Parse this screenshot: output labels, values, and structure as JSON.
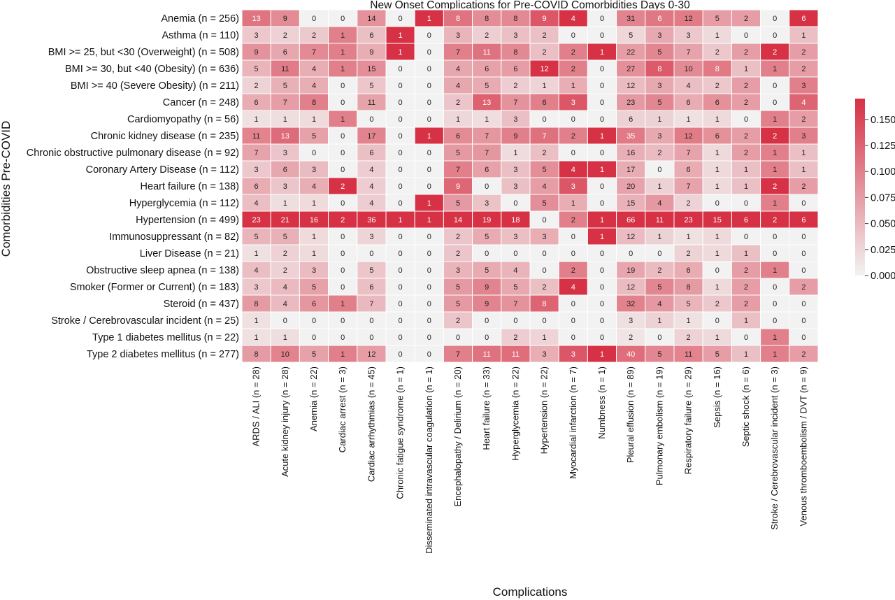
{
  "chart_data": {
    "type": "heatmap",
    "title": "New Onset Complications for Pre-COVID Comorbidities Days 0-30",
    "xlabel": "Complications",
    "ylabel": "Comorbidities Pre-COVID",
    "rows": [
      "Anemia (n = 256)",
      "Asthma (n = 110)",
      "BMI >= 25, but <30 (Overweight) (n = 508)",
      "BMI >= 30, but <40 (Obesity) (n = 636)",
      "BMI >= 40 (Severe Obesity) (n = 211)",
      "Cancer (n = 248)",
      "Cardiomyopathy (n = 56)",
      "Chronic kidney disease (n = 235)",
      "Chronic obstructive pulmonary disease (n = 92)",
      "Coronary Artery Disease (n = 112)",
      "Heart failure (n = 138)",
      "Hyperglycemia (n = 112)",
      "Hypertension (n = 499)",
      "Immunosuppressant (n = 82)",
      "Liver Disease (n = 21)",
      "Obstructive sleep apnea (n = 138)",
      "Smoker (Former or Current) (n = 183)",
      "Steroid (n = 437)",
      "Stroke / Cerebrovascular incident (n = 25)",
      "Type 1 diabetes mellitus (n = 22)",
      "Type 2 diabetes mellitus (n = 277)"
    ],
    "columns": [
      "ARDS / ALI (n = 28)",
      "Acute kidney injury (n = 28)",
      "Anemia (n = 22)",
      "Cardiac arrest (n = 3)",
      "Cardiac arrhythmias (n = 45)",
      "Chronic fatigue syndrome (n = 1)",
      "Disseminated intravascular coagulation (n = 1)",
      "Encephalopathy / Delirium (n = 20)",
      "Heart failure (n = 33)",
      "Hyperglycemia (n = 22)",
      "Hypertension (n = 22)",
      "Myocardial infarction (n = 7)",
      "Numbness (n = 1)",
      "Pleural effusion (n = 89)",
      "Pulmonary embolism (n = 19)",
      "Respiratory failure (n = 29)",
      "Sepsis (n = 16)",
      "Septic shock (n = 6)",
      "Stroke / Cerebrovascular incident (n = 3)",
      "Venous thromboembolism / DVT (n = 9)"
    ],
    "values": [
      [
        13,
        9,
        0,
        0,
        14,
        0,
        1,
        8,
        8,
        8,
        9,
        4,
        0,
        31,
        6,
        12,
        5,
        2,
        0,
        6
      ],
      [
        3,
        2,
        2,
        1,
        6,
        1,
        0,
        3,
        2,
        3,
        2,
        0,
        0,
        5,
        3,
        3,
        1,
        0,
        0,
        1
      ],
      [
        9,
        6,
        7,
        1,
        9,
        1,
        0,
        7,
        11,
        8,
        2,
        2,
        1,
        22,
        5,
        7,
        2,
        2,
        2,
        2
      ],
      [
        5,
        11,
        4,
        1,
        15,
        0,
        0,
        4,
        6,
        6,
        12,
        2,
        0,
        27,
        8,
        10,
        8,
        1,
        1,
        2
      ],
      [
        2,
        5,
        4,
        0,
        5,
        0,
        0,
        4,
        5,
        2,
        1,
        1,
        0,
        12,
        3,
        4,
        2,
        2,
        0,
        3
      ],
      [
        6,
        7,
        8,
        0,
        11,
        0,
        0,
        2,
        13,
        7,
        6,
        3,
        0,
        23,
        5,
        6,
        6,
        2,
        0,
        4
      ],
      [
        1,
        1,
        1,
        1,
        0,
        0,
        0,
        1,
        1,
        3,
        0,
        0,
        0,
        6,
        1,
        1,
        1,
        0,
        1,
        2
      ],
      [
        11,
        13,
        5,
        0,
        17,
        0,
        1,
        6,
        7,
        9,
        7,
        2,
        1,
        35,
        3,
        12,
        6,
        2,
        2,
        3
      ],
      [
        7,
        3,
        0,
        0,
        6,
        0,
        0,
        5,
        7,
        1,
        2,
        0,
        0,
        16,
        2,
        7,
        1,
        2,
        1,
        1
      ],
      [
        3,
        6,
        3,
        0,
        4,
        0,
        0,
        7,
        6,
        3,
        5,
        4,
        1,
        17,
        0,
        6,
        1,
        1,
        1,
        1
      ],
      [
        6,
        3,
        4,
        2,
        4,
        0,
        0,
        9,
        0,
        3,
        4,
        3,
        0,
        20,
        1,
        7,
        1,
        1,
        2,
        2
      ],
      [
        4,
        1,
        1,
        0,
        4,
        0,
        1,
        5,
        3,
        0,
        5,
        1,
        0,
        15,
        4,
        2,
        0,
        0,
        1,
        0
      ],
      [
        23,
        21,
        16,
        2,
        36,
        1,
        1,
        14,
        19,
        18,
        0,
        2,
        1,
        66,
        11,
        23,
        15,
        6,
        2,
        6
      ],
      [
        5,
        5,
        1,
        0,
        3,
        0,
        0,
        2,
        5,
        3,
        3,
        0,
        1,
        12,
        1,
        1,
        1,
        0,
        0,
        0
      ],
      [
        1,
        2,
        1,
        0,
        0,
        0,
        0,
        2,
        0,
        0,
        0,
        0,
        0,
        0,
        0,
        2,
        1,
        1,
        0,
        0
      ],
      [
        4,
        2,
        3,
        0,
        5,
        0,
        0,
        3,
        5,
        4,
        0,
        2,
        0,
        19,
        2,
        6,
        0,
        2,
        1,
        0
      ],
      [
        3,
        4,
        5,
        0,
        6,
        0,
        0,
        5,
        9,
        5,
        2,
        4,
        0,
        12,
        5,
        8,
        1,
        2,
        0,
        2
      ],
      [
        8,
        4,
        6,
        1,
        7,
        0,
        0,
        5,
        9,
        7,
        8,
        0,
        0,
        32,
        4,
        5,
        2,
        2,
        0,
        0
      ],
      [
        1,
        0,
        0,
        0,
        0,
        0,
        0,
        2,
        0,
        0,
        0,
        0,
        0,
        3,
        1,
        1,
        0,
        1,
        0,
        0
      ],
      [
        1,
        1,
        0,
        0,
        0,
        0,
        0,
        0,
        0,
        2,
        1,
        0,
        0,
        2,
        0,
        2,
        1,
        0,
        1,
        0
      ],
      [
        8,
        10,
        5,
        1,
        12,
        0,
        0,
        7,
        11,
        11,
        3,
        3,
        1,
        40,
        5,
        11,
        5,
        1,
        1,
        2
      ]
    ],
    "colorbar": {
      "min": 0,
      "max": 0.17,
      "ticks": [
        "0.000",
        "0.025",
        "0.050",
        "0.075",
        "0.100",
        "0.125",
        "0.150"
      ],
      "color_low": "#f2f2f2",
      "color_high": "#d63144"
    }
  }
}
